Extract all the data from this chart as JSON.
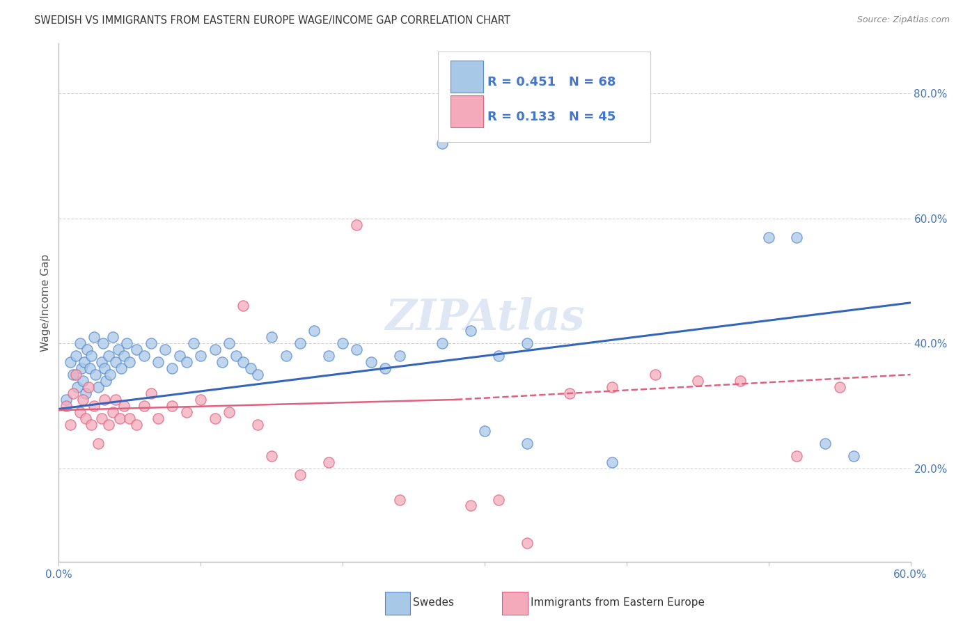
{
  "title": "SWEDISH VS IMMIGRANTS FROM EASTERN EUROPE WAGE/INCOME GAP CORRELATION CHART",
  "source": "Source: ZipAtlas.com",
  "ylabel": "Wage/Income Gap",
  "right_yticks": [
    "20.0%",
    "40.0%",
    "60.0%",
    "80.0%"
  ],
  "right_ytick_vals": [
    0.2,
    0.4,
    0.6,
    0.8
  ],
  "watermark": "ZIPAtlas",
  "blue_color": "#A8C8E8",
  "pink_color": "#F4AABB",
  "blue_edge_color": "#5588CC",
  "pink_edge_color": "#E06080",
  "blue_trend_color": "#3366BB",
  "pink_trend_color": "#E06080",
  "legend_text_color": "#4477CC",
  "background_color": "#FFFFFF",
  "grid_color": "#CCCCCC",
  "xlim": [
    0.0,
    0.6
  ],
  "ylim": [
    0.05,
    0.88
  ],
  "swedes_x": [
    0.005,
    0.008,
    0.01,
    0.012,
    0.013,
    0.015,
    0.016,
    0.017,
    0.018,
    0.019,
    0.02,
    0.022,
    0.023,
    0.025,
    0.026,
    0.028,
    0.03,
    0.031,
    0.032,
    0.033,
    0.035,
    0.036,
    0.038,
    0.04,
    0.042,
    0.044,
    0.046,
    0.048,
    0.05,
    0.055,
    0.06,
    0.065,
    0.07,
    0.075,
    0.08,
    0.085,
    0.09,
    0.095,
    0.1,
    0.11,
    0.115,
    0.12,
    0.125,
    0.13,
    0.135,
    0.14,
    0.15,
    0.16,
    0.17,
    0.18,
    0.19,
    0.2,
    0.21,
    0.22,
    0.23,
    0.24,
    0.27,
    0.29,
    0.31,
    0.33,
    0.27,
    0.3,
    0.33,
    0.39,
    0.5,
    0.52,
    0.54,
    0.56
  ],
  "swedes_y": [
    0.31,
    0.37,
    0.35,
    0.38,
    0.33,
    0.4,
    0.36,
    0.34,
    0.37,
    0.32,
    0.39,
    0.36,
    0.38,
    0.41,
    0.35,
    0.33,
    0.37,
    0.4,
    0.36,
    0.34,
    0.38,
    0.35,
    0.41,
    0.37,
    0.39,
    0.36,
    0.38,
    0.4,
    0.37,
    0.39,
    0.38,
    0.4,
    0.37,
    0.39,
    0.36,
    0.38,
    0.37,
    0.4,
    0.38,
    0.39,
    0.37,
    0.4,
    0.38,
    0.37,
    0.36,
    0.35,
    0.41,
    0.38,
    0.4,
    0.42,
    0.38,
    0.4,
    0.39,
    0.37,
    0.36,
    0.38,
    0.4,
    0.42,
    0.38,
    0.4,
    0.72,
    0.26,
    0.24,
    0.21,
    0.57,
    0.57,
    0.24,
    0.22
  ],
  "immigrants_x": [
    0.005,
    0.008,
    0.01,
    0.012,
    0.015,
    0.017,
    0.019,
    0.021,
    0.023,
    0.025,
    0.028,
    0.03,
    0.032,
    0.035,
    0.038,
    0.04,
    0.043,
    0.046,
    0.05,
    0.055,
    0.06,
    0.065,
    0.07,
    0.08,
    0.09,
    0.1,
    0.11,
    0.12,
    0.13,
    0.14,
    0.15,
    0.17,
    0.19,
    0.21,
    0.24,
    0.29,
    0.31,
    0.33,
    0.36,
    0.39,
    0.42,
    0.45,
    0.48,
    0.52,
    0.55
  ],
  "immigrants_y": [
    0.3,
    0.27,
    0.32,
    0.35,
    0.29,
    0.31,
    0.28,
    0.33,
    0.27,
    0.3,
    0.24,
    0.28,
    0.31,
    0.27,
    0.29,
    0.31,
    0.28,
    0.3,
    0.28,
    0.27,
    0.3,
    0.32,
    0.28,
    0.3,
    0.29,
    0.31,
    0.28,
    0.29,
    0.46,
    0.27,
    0.22,
    0.19,
    0.21,
    0.59,
    0.15,
    0.14,
    0.15,
    0.08,
    0.32,
    0.33,
    0.35,
    0.34,
    0.34,
    0.22,
    0.33
  ]
}
